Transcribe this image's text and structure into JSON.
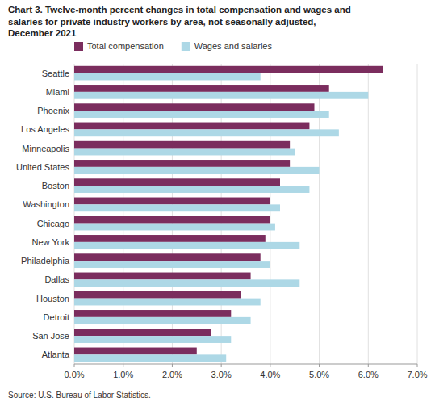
{
  "chart_data": {
    "type": "bar",
    "orientation": "horizontal",
    "title": "Chart 3. Twelve-month percent changes in total compensation and wages and\nsalaries for private industry workers by area, not seasonally adjusted,\nDecember 2021",
    "annotations": [
      "Source: U.S. Bureau of Labor Statistics."
    ],
    "categories": [
      "Atlanta",
      "San Jose",
      "Detroit",
      "Houston",
      "Dallas",
      "Philadelphia",
      "New York",
      "Chicago",
      "Washington",
      "Boston",
      "United States",
      "Minneapolis",
      "Los Angeles",
      "Phoenix",
      "Miami",
      "Seattle"
    ],
    "series": [
      {
        "name": "Total compensation",
        "color": "#7b2d5e",
        "values": [
          2.5,
          2.8,
          3.2,
          3.4,
          3.6,
          3.8,
          3.9,
          4.0,
          4.0,
          4.2,
          4.4,
          4.4,
          4.8,
          4.9,
          5.2,
          6.3
        ]
      },
      {
        "name": "Wages and salaries",
        "color": "#add8e6",
        "values": [
          3.1,
          3.2,
          3.6,
          3.8,
          4.6,
          4.0,
          4.6,
          4.1,
          4.2,
          4.8,
          5.0,
          4.5,
          5.4,
          5.2,
          6.0,
          3.8
        ]
      }
    ],
    "xlim": [
      0,
      7.0
    ],
    "xticks": [
      {
        "value": 0.0,
        "label": "0.0%"
      },
      {
        "value": 1.0,
        "label": "1.0%"
      },
      {
        "value": 2.0,
        "label": "2.0%"
      },
      {
        "value": 3.0,
        "label": "3.0%"
      },
      {
        "value": 4.0,
        "label": "4.0%"
      },
      {
        "value": 5.0,
        "label": "5.0%"
      },
      {
        "value": 6.0,
        "label": "6.0%"
      },
      {
        "value": 7.0,
        "label": "7.0%"
      }
    ],
    "grid": true,
    "legend": "top"
  }
}
